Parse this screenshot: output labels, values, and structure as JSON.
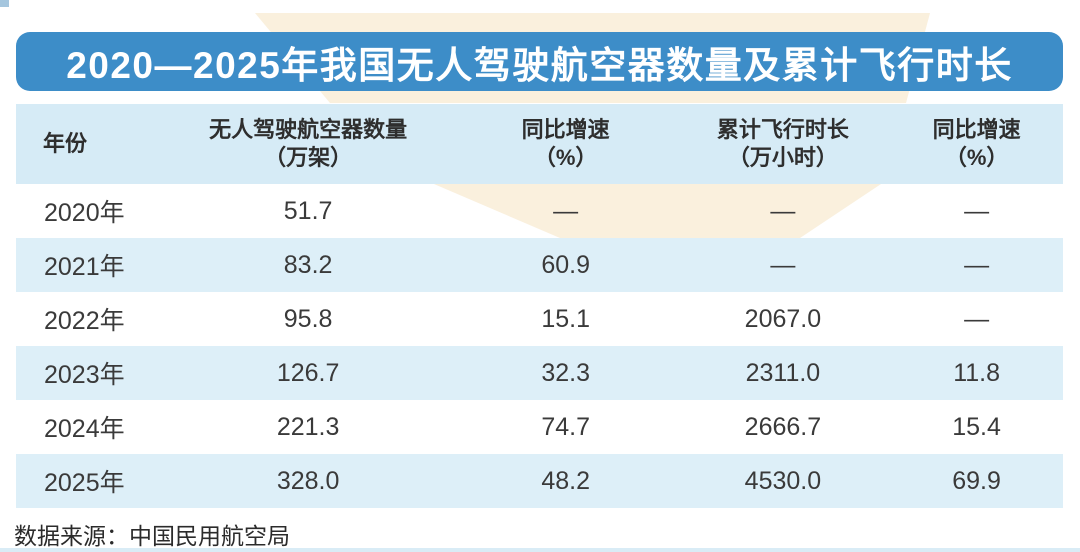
{
  "page": {
    "title": "2020—2025年我国无人驾驶航空器数量及累计飞行时长",
    "source": "数据来源：中国民用航空局"
  },
  "colors": {
    "banner_blue": "#3d8dc8",
    "header_row_blue": "#d6ebf6",
    "alt_row_blue": "#ddeff8",
    "cream_ribbon": "#faf0dd",
    "title_text": "#ffffff",
    "body_text": "#3a3a3a"
  },
  "table": {
    "headers": [
      {
        "label": "年份",
        "unit": ""
      },
      {
        "label": "无人驾驶航空器数量",
        "unit": "（万架）"
      },
      {
        "label": "同比增速",
        "unit": "（%）"
      },
      {
        "label": "累计飞行时长",
        "unit": "（万小时）"
      },
      {
        "label": "同比增速",
        "unit": "（%）"
      }
    ],
    "rows": [
      {
        "year": "2020年",
        "v1": "51.7",
        "v2": "—",
        "v3": "—",
        "v4": "—"
      },
      {
        "year": "2021年",
        "v1": "83.2",
        "v2": "60.9",
        "v3": "—",
        "v4": "—"
      },
      {
        "year": "2022年",
        "v1": "95.8",
        "v2": "15.1",
        "v3": "2067.0",
        "v4": "—"
      },
      {
        "year": "2023年",
        "v1": "126.7",
        "v2": "32.3",
        "v3": "2311.0",
        "v4": "11.8"
      },
      {
        "year": "2024年",
        "v1": "221.3",
        "v2": "74.7",
        "v3": "2666.7",
        "v4": "15.4"
      },
      {
        "year": "2025年",
        "v1": "328.0",
        "v2": "48.2",
        "v3": "4530.0",
        "v4": "69.9"
      }
    ]
  },
  "chart_data": {
    "type": "table",
    "title": "2020—2025年我国无人驾驶航空器数量及累计飞行时长",
    "columns": [
      "年份",
      "无人驾驶航空器数量（万架）",
      "同比增速（%）",
      "累计飞行时长（万小时）",
      "同比增速（%）"
    ],
    "years": [
      "2020年",
      "2021年",
      "2022年",
      "2023年",
      "2024年",
      "2025年"
    ],
    "series": [
      {
        "name": "无人驾驶航空器数量（万架）",
        "values": [
          51.7,
          83.2,
          95.8,
          126.7,
          221.3,
          328.0
        ]
      },
      {
        "name": "无人驾驶航空器数量同比增速（%）",
        "values": [
          null,
          60.9,
          15.1,
          32.3,
          74.7,
          48.2
        ]
      },
      {
        "name": "累计飞行时长（万小时）",
        "values": [
          null,
          null,
          2067.0,
          2311.0,
          2666.7,
          4530.0
        ]
      },
      {
        "name": "累计飞行时长同比增速（%）",
        "values": [
          null,
          null,
          null,
          11.8,
          15.4,
          69.9
        ]
      }
    ],
    "missing_marker": "—",
    "source": "数据来源：中国民用航空局"
  }
}
